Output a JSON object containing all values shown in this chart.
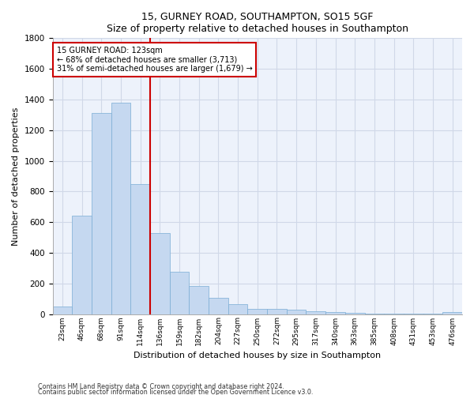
{
  "title1": "15, GURNEY ROAD, SOUTHAMPTON, SO15 5GF",
  "title2": "Size of property relative to detached houses in Southampton",
  "xlabel": "Distribution of detached houses by size in Southampton",
  "ylabel": "Number of detached properties",
  "categories": [
    "23sqm",
    "46sqm",
    "68sqm",
    "91sqm",
    "114sqm",
    "136sqm",
    "159sqm",
    "182sqm",
    "204sqm",
    "227sqm",
    "250sqm",
    "272sqm",
    "295sqm",
    "317sqm",
    "340sqm",
    "363sqm",
    "385sqm",
    "408sqm",
    "431sqm",
    "453sqm",
    "476sqm"
  ],
  "values": [
    50,
    640,
    1310,
    1380,
    850,
    530,
    275,
    185,
    105,
    65,
    35,
    35,
    28,
    20,
    12,
    10,
    5,
    5,
    3,
    2,
    12
  ],
  "bar_color": "#c5d8f0",
  "bar_edge_color": "#7aadd4",
  "grid_color": "#d0d8e8",
  "annotation_box_color": "#cc0000",
  "vline_color": "#cc0000",
  "property_label": "15 GURNEY ROAD: 123sqm",
  "annotation_line1": "← 68% of detached houses are smaller (3,713)",
  "annotation_line2": "31% of semi-detached houses are larger (1,679) →",
  "vline_x": 4.5,
  "ylim": [
    0,
    1800
  ],
  "yticks": [
    0,
    200,
    400,
    600,
    800,
    1000,
    1200,
    1400,
    1600,
    1800
  ],
  "footnote1": "Contains HM Land Registry data © Crown copyright and database right 2024.",
  "footnote2": "Contains public sector information licensed under the Open Government Licence v3.0.",
  "bg_color": "#edf2fb"
}
